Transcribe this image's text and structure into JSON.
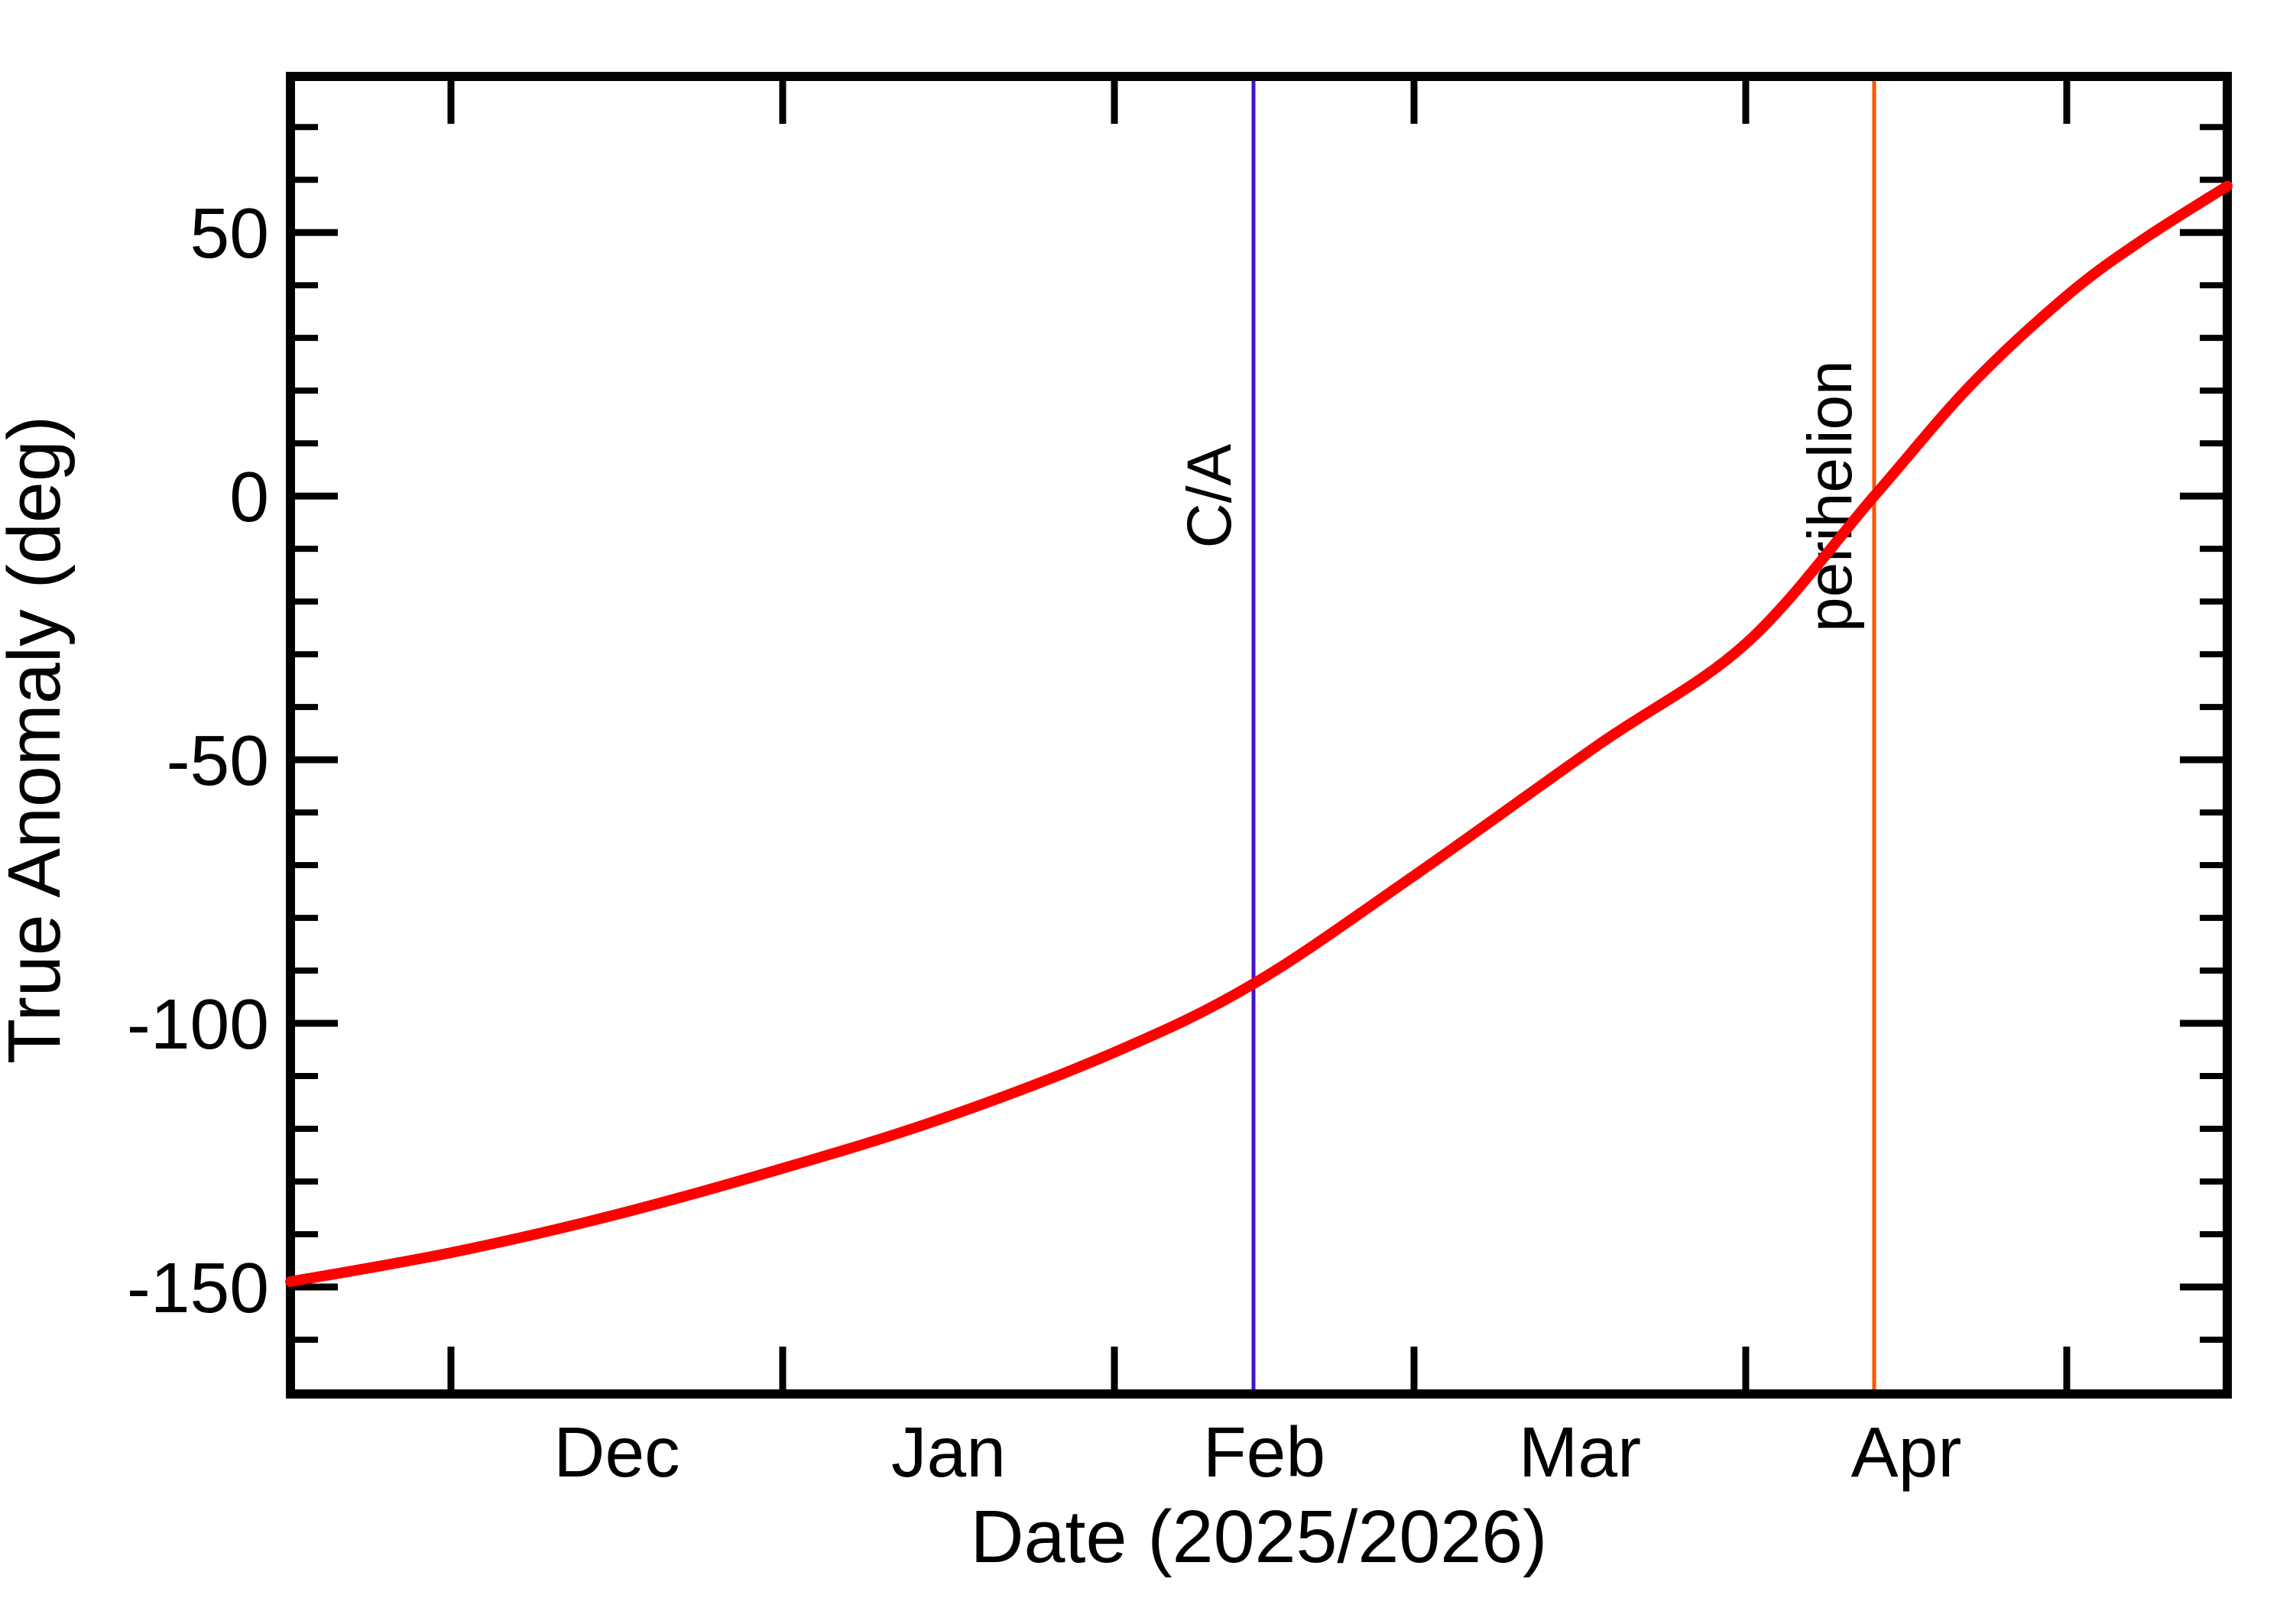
{
  "figure": {
    "background": "#ffffff",
    "axis_color": "#000000"
  },
  "chart_data": {
    "type": "line",
    "title": "",
    "xlabel": "Date (2025/2026)",
    "ylabel": "True Anomaly (deg)",
    "x_range": [
      "2025-11-16",
      "2026-05-16"
    ],
    "y_range": [
      -170.3,
      79.6
    ],
    "grid": false,
    "legend": false,
    "y_major_ticks": [
      {
        "value": 50,
        "label": "50"
      },
      {
        "value": 0,
        "label": "0"
      },
      {
        "value": -50,
        "label": "-50"
      },
      {
        "value": -100,
        "label": "-100"
      },
      {
        "value": -150,
        "label": "-150"
      }
    ],
    "y_minor_tick_step": 10,
    "x_month_ticks": [
      {
        "date": "2025-12-01",
        "label": "Dec"
      },
      {
        "date": "2026-01-01",
        "label": "Jan"
      },
      {
        "date": "2026-02-01",
        "label": "Feb"
      },
      {
        "date": "2026-03-01",
        "label": "Mar"
      },
      {
        "date": "2026-04-01",
        "label": "Apr"
      },
      {
        "date": "2026-05-01",
        "label": ""
      }
    ],
    "series": [
      {
        "name": "true anomaly",
        "color": "#ff0000",
        "points": [
          [
            "2025-11-16",
            -149
          ],
          [
            "2025-12-01",
            -143.5
          ],
          [
            "2025-12-16",
            -136.5
          ],
          [
            "2026-01-01",
            -127.5
          ],
          [
            "2026-01-16",
            -118
          ],
          [
            "2026-02-01",
            -105.5
          ],
          [
            "2026-02-14",
            -92.5
          ],
          [
            "2026-03-01",
            -72
          ],
          [
            "2026-03-18",
            -47.5
          ],
          [
            "2026-04-01",
            -28
          ],
          [
            "2026-04-13",
            0
          ],
          [
            "2026-04-22",
            21
          ],
          [
            "2026-05-01",
            38
          ],
          [
            "2026-05-08",
            48.5
          ],
          [
            "2026-05-16",
            58.8
          ]
        ]
      }
    ],
    "annotations": [
      {
        "label": "C/A",
        "date": "2026-02-14",
        "value_at_line": -92.5,
        "color": "#4411cc"
      },
      {
        "label": "perihelion",
        "date": "2026-04-13",
        "value_at_line": 0,
        "color": "#ff5500"
      }
    ]
  }
}
